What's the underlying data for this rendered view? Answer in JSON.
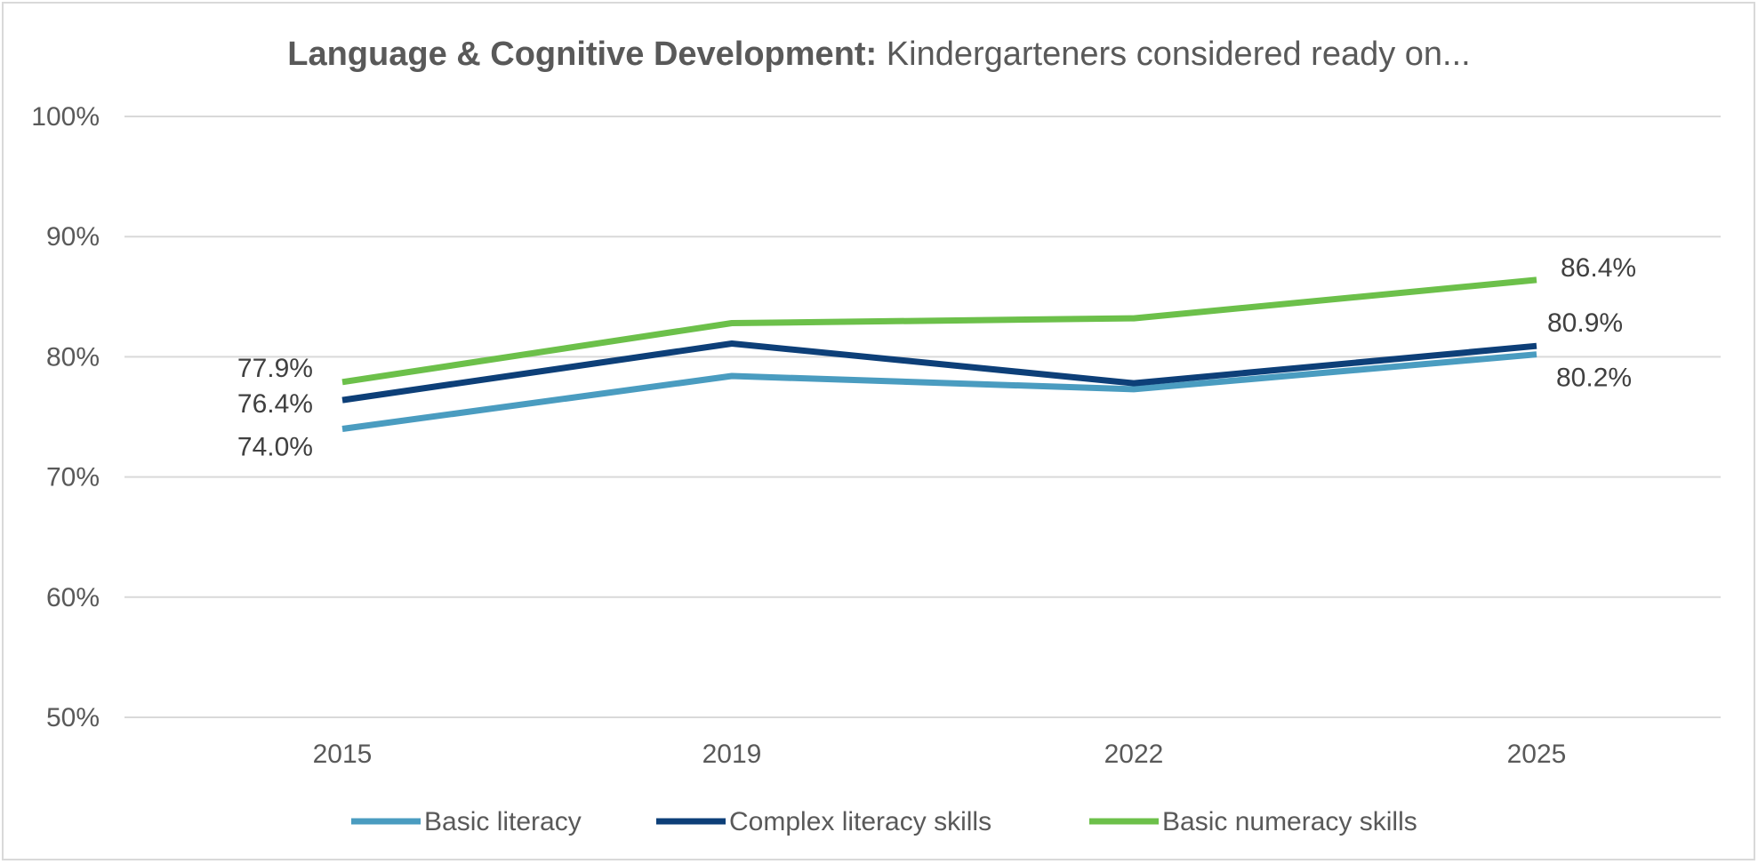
{
  "chart_data": {
    "type": "line",
    "title_bold": "Language & Cognitive Development:",
    "title_rest": " Kindergarteners considered ready on...",
    "categories": [
      "2015",
      "2019",
      "2022",
      "2025"
    ],
    "y_ticks": [
      "50%",
      "60%",
      "70%",
      "80%",
      "90%",
      "100%"
    ],
    "ylim": [
      50,
      100
    ],
    "grid": true,
    "legend_position": "bottom",
    "series": [
      {
        "name": "Basic literacy",
        "color": "#4a9cc0",
        "values": [
          74.0,
          78.4,
          77.3,
          80.2
        ],
        "labels": [
          "74.0%",
          "",
          "",
          "80.2%"
        ]
      },
      {
        "name": "Complex literacy skills",
        "color": "#0d3f78",
        "values": [
          76.4,
          81.1,
          77.8,
          80.9
        ],
        "labels": [
          "76.4%",
          "",
          "",
          "80.9%"
        ]
      },
      {
        "name": "Basic numeracy skills",
        "color": "#6cc04a",
        "values": [
          77.9,
          82.8,
          83.2,
          86.4
        ],
        "labels": [
          "77.9%",
          "",
          "",
          "86.4%"
        ]
      }
    ]
  }
}
